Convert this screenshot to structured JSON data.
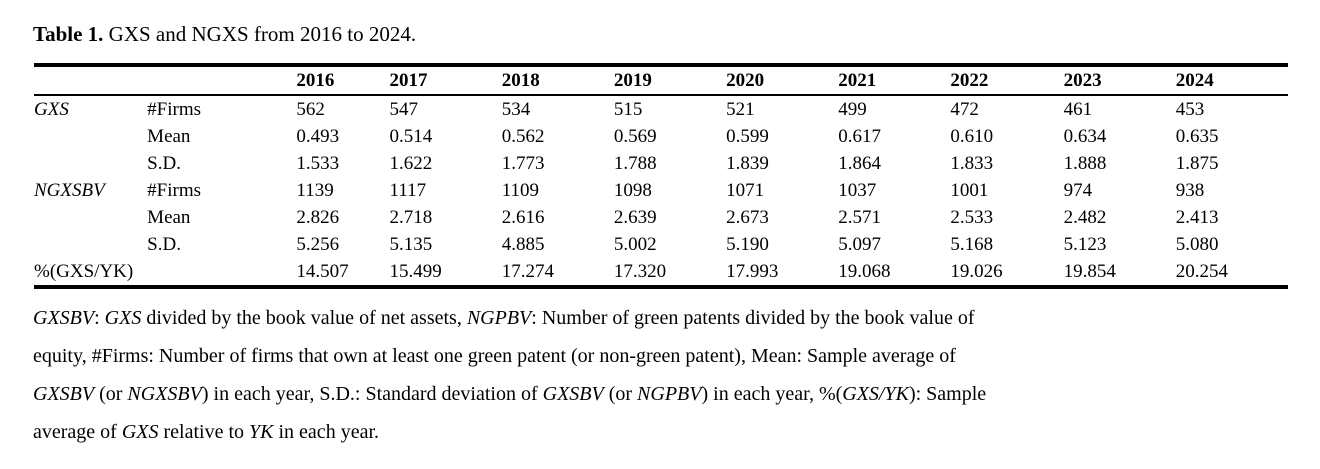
{
  "title": {
    "label": "Table 1.",
    "rest": " GXS and NGXS from 2016 to 2024."
  },
  "table": {
    "year_headers": [
      "2016",
      "2017",
      "2018",
      "2019",
      "2020",
      "2021",
      "2022",
      "2023",
      "2024"
    ],
    "rows": [
      {
        "group": "GXS",
        "group_italic": true,
        "stat": "#Firms",
        "values": [
          "562",
          "547",
          "534",
          "515",
          "521",
          "499",
          "472",
          "461",
          "453"
        ]
      },
      {
        "group": "",
        "group_italic": false,
        "stat": "Mean",
        "values": [
          "0.493",
          "0.514",
          "0.562",
          "0.569",
          "0.599",
          "0.617",
          "0.610",
          "0.634",
          "0.635"
        ]
      },
      {
        "group": "",
        "group_italic": false,
        "stat": "S.D.",
        "values": [
          "1.533",
          "1.622",
          "1.773",
          "1.788",
          "1.839",
          "1.864",
          "1.833",
          "1.888",
          "1.875"
        ]
      },
      {
        "group": "NGXSBV",
        "group_italic": true,
        "stat": "#Firms",
        "values": [
          "1139",
          "1117",
          "1109",
          "1098",
          "1071",
          "1037",
          "1001",
          "974",
          "938"
        ]
      },
      {
        "group": "",
        "group_italic": false,
        "stat": "Mean",
        "values": [
          "2.826",
          "2.718",
          "2.616",
          "2.639",
          "2.673",
          "2.571",
          "2.533",
          "2.482",
          "2.413"
        ]
      },
      {
        "group": "",
        "group_italic": false,
        "stat": "S.D.",
        "values": [
          "5.256",
          "5.135",
          "4.885",
          "5.002",
          "5.190",
          "5.097",
          "5.168",
          "5.123",
          "5.080"
        ]
      },
      {
        "group": "%(GXS/YK)",
        "group_italic": false,
        "stat": "",
        "values": [
          "14.507",
          "15.499",
          "17.274",
          "17.320",
          "17.993",
          "19.068",
          "19.026",
          "19.854",
          "20.254"
        ]
      }
    ]
  },
  "footnote": {
    "lines": [
      [
        {
          "t": "GXSBV",
          "i": true
        },
        {
          "t": ": ",
          "i": false
        },
        {
          "t": "GXS",
          "i": true
        },
        {
          "t": " divided by the book value of net assets, ",
          "i": false
        },
        {
          "t": "NGPBV",
          "i": true
        },
        {
          "t": ": Number of green patents divided by the book value of",
          "i": false
        }
      ],
      [
        {
          "t": "equity, #Firms: Number of firms that own at least one green patent (or non-green patent), Mean: Sample average of",
          "i": false
        }
      ],
      [
        {
          "t": "GXSBV",
          "i": true
        },
        {
          "t": " (or ",
          "i": false
        },
        {
          "t": "NGXSBV",
          "i": true
        },
        {
          "t": ") in each year, S.D.: Standard deviation of ",
          "i": false
        },
        {
          "t": "GXSBV",
          "i": true
        },
        {
          "t": " (or ",
          "i": false
        },
        {
          "t": "NGPBV",
          "i": true
        },
        {
          "t": ") in each year, %(",
          "i": false
        },
        {
          "t": "GXS/YK",
          "i": true
        },
        {
          "t": "): Sample",
          "i": false
        }
      ],
      [
        {
          "t": "average of ",
          "i": false
        },
        {
          "t": "GXS",
          "i": true
        },
        {
          "t": " relative to ",
          "i": false
        },
        {
          "t": "YK",
          "i": true
        },
        {
          "t": " in each year.",
          "i": false
        }
      ]
    ]
  }
}
